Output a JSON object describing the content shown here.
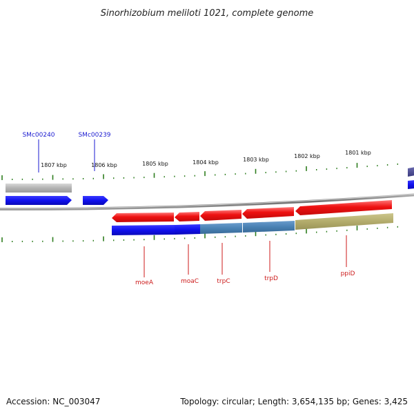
{
  "title": "Sinorhizobium meliloti 1021, complete genome",
  "footer": {
    "accession": "Accession: NC_003047",
    "topology": "Topology: circular; Length: 3,654,135 bp; Genes: 3,425"
  },
  "scale_labels": [
    "1807 kbp",
    "1806 kbp",
    "1805 kbp",
    "1804 kbp",
    "1803 kbp",
    "1802 kbp",
    "1801 kbp"
  ],
  "top_gene_labels": [
    "SMc00240",
    "SMc00239"
  ],
  "bottom_gene_labels": [
    "moeA",
    "moaC",
    "trpC",
    "trpD",
    "ppiD"
  ],
  "colors": {
    "label_top": "#1a1ad0",
    "label_bottom": "#cc1a1a",
    "tick": "#2e7d1e",
    "backbone": "#7a7a7a",
    "gene_forward": "#1010ee",
    "gene_reverse": "#ee1010",
    "gray_feature": "#b3b3b3",
    "steel_feature": "#4a82b4",
    "olive_feature": "#b3ac6c",
    "edge_feature": "#4a4a8e"
  }
}
